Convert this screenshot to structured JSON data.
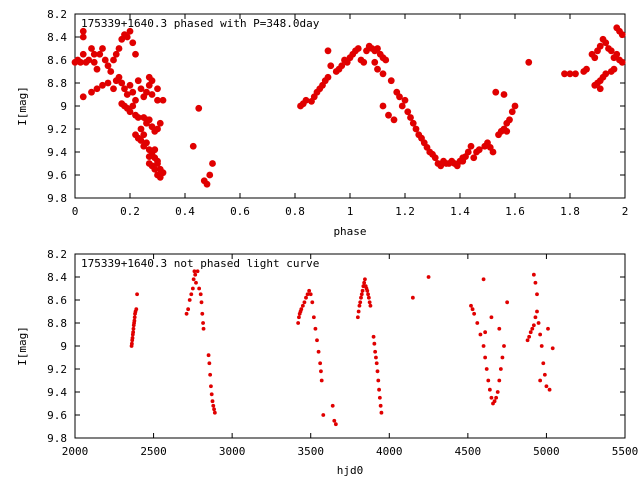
{
  "chart_data": [
    {
      "type": "scatter",
      "title": "175339+1640.3 phased with P=348.0day",
      "xlabel": "phase",
      "ylabel": "I[mag]",
      "xlim": [
        0,
        2
      ],
      "ylim": [
        9.8,
        8.2
      ],
      "y_inverted": true,
      "grid": false,
      "marker": "filled circle (large)",
      "color": "#e00000",
      "xticks": [
        "0",
        "0.2",
        "0.4",
        "0.6",
        "0.8",
        "1",
        "1.2",
        "1.4",
        "1.6",
        "1.8",
        "2"
      ],
      "xtick_values": [
        0,
        0.2,
        0.4,
        0.6,
        0.8,
        1,
        1.2,
        1.4,
        1.6,
        1.8,
        2
      ],
      "yticks": [
        "8.2",
        "8.4",
        "8.6",
        "8.8",
        "9",
        "9.2",
        "9.4",
        "9.6",
        "9.8"
      ],
      "ytick_values": [
        8.2,
        8.4,
        8.6,
        8.8,
        9,
        9.2,
        9.4,
        9.6,
        9.8
      ],
      "points": [
        [
          0.0,
          8.62
        ],
        [
          0.01,
          8.6
        ],
        [
          0.02,
          8.62
        ],
        [
          0.03,
          8.55
        ],
        [
          0.03,
          8.4
        ],
        [
          0.03,
          8.35
        ],
        [
          0.04,
          8.62
        ],
        [
          0.05,
          8.6
        ],
        [
          0.06,
          8.5
        ],
        [
          0.07,
          8.55
        ],
        [
          0.07,
          8.62
        ],
        [
          0.08,
          8.68
        ],
        [
          0.09,
          8.55
        ],
        [
          0.1,
          8.5
        ],
        [
          0.11,
          8.6
        ],
        [
          0.12,
          8.65
        ],
        [
          0.13,
          8.7
        ],
        [
          0.14,
          8.6
        ],
        [
          0.15,
          8.55
        ],
        [
          0.16,
          8.5
        ],
        [
          0.17,
          8.42
        ],
        [
          0.18,
          8.38
        ],
        [
          0.19,
          8.4
        ],
        [
          0.2,
          8.35
        ],
        [
          0.21,
          8.45
        ],
        [
          0.22,
          8.55
        ],
        [
          0.03,
          8.92
        ],
        [
          0.06,
          8.88
        ],
        [
          0.08,
          8.85
        ],
        [
          0.1,
          8.82
        ],
        [
          0.12,
          8.8
        ],
        [
          0.14,
          8.85
        ],
        [
          0.15,
          8.78
        ],
        [
          0.16,
          8.75
        ],
        [
          0.17,
          8.8
        ],
        [
          0.18,
          8.85
        ],
        [
          0.19,
          8.9
        ],
        [
          0.2,
          8.82
        ],
        [
          0.21,
          8.88
        ],
        [
          0.22,
          8.95
        ],
        [
          0.23,
          8.78
        ],
        [
          0.24,
          8.85
        ],
        [
          0.25,
          8.92
        ],
        [
          0.26,
          8.88
        ],
        [
          0.27,
          8.82
        ],
        [
          0.28,
          8.9
        ],
        [
          0.17,
          8.98
        ],
        [
          0.18,
          9.0
        ],
        [
          0.19,
          9.02
        ],
        [
          0.2,
          9.05
        ],
        [
          0.21,
          9.0
        ],
        [
          0.22,
          9.08
        ],
        [
          0.23,
          9.1
        ],
        [
          0.24,
          9.2
        ],
        [
          0.25,
          9.25
        ],
        [
          0.26,
          9.15
        ],
        [
          0.27,
          9.12
        ],
        [
          0.28,
          9.18
        ],
        [
          0.29,
          9.22
        ],
        [
          0.3,
          9.2
        ],
        [
          0.31,
          9.15
        ],
        [
          0.22,
          9.25
        ],
        [
          0.23,
          9.28
        ],
        [
          0.24,
          9.3
        ],
        [
          0.25,
          9.35
        ],
        [
          0.26,
          9.32
        ],
        [
          0.27,
          9.38
        ],
        [
          0.28,
          9.42
        ],
        [
          0.29,
          9.45
        ],
        [
          0.3,
          9.48
        ],
        [
          0.27,
          9.5
        ],
        [
          0.28,
          9.52
        ],
        [
          0.29,
          9.55
        ],
        [
          0.3,
          9.5
        ],
        [
          0.31,
          9.55
        ],
        [
          0.3,
          9.6
        ],
        [
          0.31,
          9.62
        ],
        [
          0.32,
          9.58
        ],
        [
          0.27,
          9.44
        ],
        [
          0.29,
          9.38
        ],
        [
          0.27,
          8.75
        ],
        [
          0.28,
          8.78
        ],
        [
          0.3,
          8.95
        ],
        [
          0.3,
          8.85
        ],
        [
          0.32,
          8.95
        ],
        [
          0.43,
          9.35
        ],
        [
          0.45,
          9.02
        ],
        [
          0.47,
          9.65
        ],
        [
          0.48,
          9.68
        ],
        [
          0.49,
          9.6
        ],
        [
          0.5,
          9.5
        ],
        [
          0.25,
          9.1
        ],
        [
          0.26,
          9.12
        ],
        [
          0.82,
          9.0
        ],
        [
          0.83,
          8.98
        ],
        [
          0.84,
          8.95
        ],
        [
          0.86,
          8.96
        ],
        [
          0.87,
          8.92
        ],
        [
          0.88,
          8.88
        ],
        [
          0.89,
          8.85
        ],
        [
          0.9,
          8.82
        ],
        [
          0.91,
          8.78
        ],
        [
          0.92,
          8.75
        ],
        [
          0.92,
          8.52
        ],
        [
          0.93,
          8.65
        ],
        [
          0.95,
          8.7
        ],
        [
          0.96,
          8.68
        ],
        [
          0.97,
          8.65
        ],
        [
          0.98,
          8.6
        ],
        [
          0.99,
          8.62
        ],
        [
          1.0,
          8.58
        ],
        [
          1.01,
          8.55
        ],
        [
          1.02,
          8.52
        ],
        [
          1.03,
          8.5
        ],
        [
          1.04,
          8.6
        ],
        [
          1.05,
          8.62
        ],
        [
          1.06,
          8.52
        ],
        [
          1.07,
          8.48
        ],
        [
          1.08,
          8.5
        ],
        [
          1.09,
          8.52
        ],
        [
          1.1,
          8.5
        ],
        [
          1.11,
          8.55
        ],
        [
          1.12,
          8.58
        ],
        [
          1.09,
          8.62
        ],
        [
          1.1,
          8.68
        ],
        [
          1.12,
          8.72
        ],
        [
          1.13,
          8.6
        ],
        [
          1.15,
          8.78
        ],
        [
          1.17,
          8.88
        ],
        [
          1.18,
          8.92
        ],
        [
          1.19,
          9.0
        ],
        [
          1.2,
          8.95
        ],
        [
          1.21,
          9.05
        ],
        [
          1.22,
          9.1
        ],
        [
          1.23,
          9.15
        ],
        [
          1.24,
          9.2
        ],
        [
          1.25,
          9.25
        ],
        [
          1.26,
          9.28
        ],
        [
          1.27,
          9.32
        ],
        [
          1.28,
          9.36
        ],
        [
          1.29,
          9.4
        ],
        [
          1.3,
          9.42
        ],
        [
          1.31,
          9.45
        ],
        [
          1.32,
          9.5
        ],
        [
          1.33,
          9.52
        ],
        [
          1.34,
          9.48
        ],
        [
          1.35,
          9.5
        ],
        [
          1.36,
          9.5
        ],
        [
          1.37,
          9.48
        ],
        [
          1.38,
          9.5
        ],
        [
          1.39,
          9.52
        ],
        [
          1.4,
          9.48
        ],
        [
          1.41,
          9.45
        ],
        [
          1.42,
          9.44
        ],
        [
          1.43,
          9.4
        ],
        [
          1.44,
          9.35
        ],
        [
          1.45,
          9.45
        ],
        [
          1.46,
          9.4
        ],
        [
          1.47,
          9.38
        ],
        [
          1.49,
          9.35
        ],
        [
          1.5,
          9.32
        ],
        [
          1.51,
          9.36
        ],
        [
          1.52,
          9.4
        ],
        [
          1.54,
          9.25
        ],
        [
          1.55,
          9.22
        ],
        [
          1.56,
          9.2
        ],
        [
          1.57,
          9.15
        ],
        [
          1.58,
          9.12
        ],
        [
          1.59,
          9.05
        ],
        [
          1.6,
          9.0
        ],
        [
          1.57,
          9.22
        ],
        [
          1.53,
          8.88
        ],
        [
          1.56,
          8.9
        ],
        [
          1.65,
          8.62
        ],
        [
          1.78,
          8.72
        ],
        [
          1.8,
          8.72
        ],
        [
          1.82,
          8.72
        ],
        [
          1.85,
          8.7
        ],
        [
          1.86,
          8.68
        ],
        [
          1.88,
          8.55
        ],
        [
          1.89,
          8.58
        ],
        [
          1.9,
          8.52
        ],
        [
          1.91,
          8.48
        ],
        [
          1.92,
          8.42
        ],
        [
          1.93,
          8.45
        ],
        [
          1.94,
          8.5
        ],
        [
          1.95,
          8.52
        ],
        [
          1.96,
          8.58
        ],
        [
          1.97,
          8.55
        ],
        [
          1.98,
          8.6
        ],
        [
          1.99,
          8.62
        ],
        [
          1.97,
          8.32
        ],
        [
          1.98,
          8.35
        ],
        [
          1.99,
          8.38
        ],
        [
          1.9,
          8.8
        ],
        [
          1.91,
          8.78
        ],
        [
          1.92,
          8.75
        ],
        [
          1.93,
          8.72
        ],
        [
          1.95,
          8.7
        ],
        [
          1.96,
          8.68
        ],
        [
          1.89,
          8.82
        ],
        [
          1.91,
          8.85
        ],
        [
          1.41,
          9.48
        ],
        [
          1.12,
          9.0
        ],
        [
          1.14,
          9.08
        ],
        [
          1.16,
          9.12
        ]
      ]
    },
    {
      "type": "scatter",
      "title": "175339+1640.3 not phased light curve",
      "xlabel": "hjd0",
      "ylabel": "I[mag]",
      "xlim": [
        2000,
        5500
      ],
      "ylim": [
        9.8,
        8.2
      ],
      "y_inverted": true,
      "grid": false,
      "marker": "small filled circle",
      "color": "#e00000",
      "xticks": [
        "2000",
        "2500",
        "3000",
        "3500",
        "4000",
        "4500",
        "5000",
        "5500"
      ],
      "xtick_values": [
        2000,
        2500,
        3000,
        3500,
        4000,
        4500,
        5000,
        5500
      ],
      "yticks": [
        "8.2",
        "8.4",
        "8.6",
        "8.8",
        "9",
        "9.2",
        "9.4",
        "9.6",
        "9.8"
      ],
      "ytick_values": [
        8.2,
        8.4,
        8.6,
        8.8,
        9,
        9.2,
        9.4,
        9.6,
        9.8
      ],
      "points": [
        [
          2360,
          9.0
        ],
        [
          2362,
          8.98
        ],
        [
          2364,
          8.95
        ],
        [
          2366,
          8.93
        ],
        [
          2368,
          8.9
        ],
        [
          2370,
          8.88
        ],
        [
          2372,
          8.85
        ],
        [
          2374,
          8.82
        ],
        [
          2376,
          8.8
        ],
        [
          2378,
          8.78
        ],
        [
          2380,
          8.75
        ],
        [
          2382,
          8.72
        ],
        [
          2385,
          8.7
        ],
        [
          2390,
          8.68
        ],
        [
          2395,
          8.55
        ],
        [
          2710,
          8.72
        ],
        [
          2720,
          8.68
        ],
        [
          2730,
          8.6
        ],
        [
          2740,
          8.55
        ],
        [
          2750,
          8.5
        ],
        [
          2755,
          8.42
        ],
        [
          2760,
          8.35
        ],
        [
          2765,
          8.38
        ],
        [
          2770,
          8.45
        ],
        [
          2780,
          8.35
        ],
        [
          2790,
          8.5
        ],
        [
          2800,
          8.55
        ],
        [
          2805,
          8.62
        ],
        [
          2810,
          8.72
        ],
        [
          2815,
          8.8
        ],
        [
          2818,
          8.85
        ],
        [
          2850,
          9.08
        ],
        [
          2855,
          9.15
        ],
        [
          2860,
          9.25
        ],
        [
          2865,
          9.35
        ],
        [
          2870,
          9.42
        ],
        [
          2875,
          9.48
        ],
        [
          2880,
          9.52
        ],
        [
          2885,
          9.55
        ],
        [
          2890,
          9.58
        ],
        [
          3420,
          8.8
        ],
        [
          3425,
          8.75
        ],
        [
          3430,
          8.72
        ],
        [
          3435,
          8.7
        ],
        [
          3440,
          8.68
        ],
        [
          3450,
          8.65
        ],
        [
          3460,
          8.62
        ],
        [
          3470,
          8.58
        ],
        [
          3480,
          8.55
        ],
        [
          3490,
          8.52
        ],
        [
          3500,
          8.55
        ],
        [
          3510,
          8.62
        ],
        [
          3520,
          8.75
        ],
        [
          3530,
          8.85
        ],
        [
          3540,
          8.95
        ],
        [
          3550,
          9.05
        ],
        [
          3560,
          9.15
        ],
        [
          3565,
          9.22
        ],
        [
          3570,
          9.3
        ],
        [
          3580,
          9.6
        ],
        [
          3640,
          9.52
        ],
        [
          3650,
          9.65
        ],
        [
          3660,
          9.68
        ],
        [
          3800,
          8.75
        ],
        [
          3805,
          8.7
        ],
        [
          3810,
          8.65
        ],
        [
          3815,
          8.62
        ],
        [
          3820,
          8.58
        ],
        [
          3825,
          8.55
        ],
        [
          3830,
          8.52
        ],
        [
          3835,
          8.48
        ],
        [
          3840,
          8.45
        ],
        [
          3845,
          8.42
        ],
        [
          3850,
          8.48
        ],
        [
          3855,
          8.5
        ],
        [
          3860,
          8.52
        ],
        [
          3865,
          8.55
        ],
        [
          3870,
          8.58
        ],
        [
          3875,
          8.62
        ],
        [
          3880,
          8.65
        ],
        [
          3900,
          8.92
        ],
        [
          3905,
          8.98
        ],
        [
          3910,
          9.05
        ],
        [
          3915,
          9.1
        ],
        [
          3920,
          9.15
        ],
        [
          3925,
          9.22
        ],
        [
          3930,
          9.3
        ],
        [
          3935,
          9.38
        ],
        [
          3940,
          9.45
        ],
        [
          3945,
          9.52
        ],
        [
          3950,
          9.58
        ],
        [
          4150,
          8.58
        ],
        [
          4250,
          8.4
        ],
        [
          4520,
          8.65
        ],
        [
          4530,
          8.68
        ],
        [
          4540,
          8.72
        ],
        [
          4560,
          8.8
        ],
        [
          4580,
          8.9
        ],
        [
          4600,
          9.0
        ],
        [
          4610,
          9.1
        ],
        [
          4620,
          9.2
        ],
        [
          4630,
          9.3
        ],
        [
          4640,
          9.38
        ],
        [
          4650,
          9.45
        ],
        [
          4660,
          9.5
        ],
        [
          4670,
          9.48
        ],
        [
          4680,
          9.45
        ],
        [
          4690,
          9.4
        ],
        [
          4700,
          9.3
        ],
        [
          4710,
          9.2
        ],
        [
          4720,
          9.1
        ],
        [
          4730,
          9.0
        ],
        [
          4600,
          8.42
        ],
        [
          4650,
          8.75
        ],
        [
          4700,
          8.85
        ],
        [
          4750,
          8.62
        ],
        [
          4880,
          8.95
        ],
        [
          4890,
          8.92
        ],
        [
          4900,
          8.88
        ],
        [
          4910,
          8.85
        ],
        [
          4920,
          8.82
        ],
        [
          4930,
          8.75
        ],
        [
          4940,
          8.7
        ],
        [
          4950,
          8.8
        ],
        [
          4960,
          8.9
        ],
        [
          4970,
          9.0
        ],
        [
          4980,
          9.15
        ],
        [
          4990,
          9.25
        ],
        [
          5000,
          9.35
        ],
        [
          5020,
          9.38
        ],
        [
          5040,
          9.02
        ],
        [
          4920,
          8.38
        ],
        [
          4930,
          8.45
        ],
        [
          4940,
          8.55
        ],
        [
          5010,
          8.85
        ],
        [
          4960,
          9.3
        ],
        [
          4610,
          8.88
        ]
      ]
    }
  ]
}
